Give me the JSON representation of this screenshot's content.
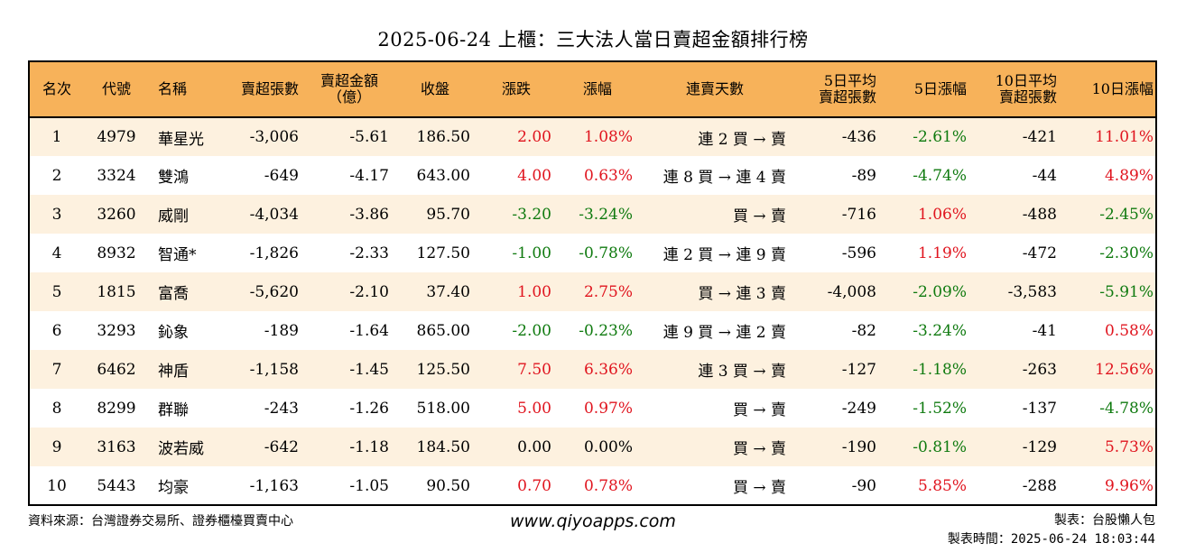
{
  "title": "2025-06-24 上櫃：三大法人當日賣超金額排行榜",
  "columns": [
    {
      "line1": "名次",
      "line2": ""
    },
    {
      "line1": "代號",
      "line2": ""
    },
    {
      "line1": "名稱",
      "line2": ""
    },
    {
      "line1": "賣超張數",
      "line2": ""
    },
    {
      "line1": "賣超金額",
      "line2": "（億）"
    },
    {
      "line1": "收盤",
      "line2": ""
    },
    {
      "line1": "漲跌",
      "line2": ""
    },
    {
      "line1": "漲幅",
      "line2": ""
    },
    {
      "line1": "連賣天數",
      "line2": ""
    },
    {
      "line1": "5日平均",
      "line2": "賣超張數"
    },
    {
      "line1": "5日漲幅",
      "line2": ""
    },
    {
      "line1": "10日平均",
      "line2": "賣超張數"
    },
    {
      "line1": "10日漲幅",
      "line2": ""
    }
  ],
  "rows": [
    {
      "rank": "1",
      "code": "4979",
      "name": "華星光",
      "sell_qty": "-3,006",
      "sell_amt": "-5.61",
      "close": "186.50",
      "change": "2.00",
      "pct": "1.08%",
      "streak": "連 2 買 → 賣",
      "avg5": "-436",
      "chg5": "-2.61%",
      "avg10": "-421",
      "chg10": "11.01%",
      "change_color": "red",
      "pct_color": "red",
      "chg5_color": "green",
      "chg10_color": "red"
    },
    {
      "rank": "2",
      "code": "3324",
      "name": "雙鴻",
      "sell_qty": "-649",
      "sell_amt": "-4.17",
      "close": "643.00",
      "change": "4.00",
      "pct": "0.63%",
      "streak": "連 8 買 → 連 4 賣",
      "avg5": "-89",
      "chg5": "-4.74%",
      "avg10": "-44",
      "chg10": "4.89%",
      "change_color": "red",
      "pct_color": "red",
      "chg5_color": "green",
      "chg10_color": "red"
    },
    {
      "rank": "3",
      "code": "3260",
      "name": "威剛",
      "sell_qty": "-4,034",
      "sell_amt": "-3.86",
      "close": "95.70",
      "change": "-3.20",
      "pct": "-3.24%",
      "streak": "買 → 賣",
      "avg5": "-716",
      "chg5": "1.06%",
      "avg10": "-488",
      "chg10": "-2.45%",
      "change_color": "green",
      "pct_color": "green",
      "chg5_color": "red",
      "chg10_color": "green"
    },
    {
      "rank": "4",
      "code": "8932",
      "name": "智通*",
      "sell_qty": "-1,826",
      "sell_amt": "-2.33",
      "close": "127.50",
      "change": "-1.00",
      "pct": "-0.78%",
      "streak": "連 2 買 → 連 9 賣",
      "avg5": "-596",
      "chg5": "1.19%",
      "avg10": "-472",
      "chg10": "-2.30%",
      "change_color": "green",
      "pct_color": "green",
      "chg5_color": "red",
      "chg10_color": "green"
    },
    {
      "rank": "5",
      "code": "1815",
      "name": "富喬",
      "sell_qty": "-5,620",
      "sell_amt": "-2.10",
      "close": "37.40",
      "change": "1.00",
      "pct": "2.75%",
      "streak": "買 → 連 3 賣",
      "avg5": "-4,008",
      "chg5": "-2.09%",
      "avg10": "-3,583",
      "chg10": "-5.91%",
      "change_color": "red",
      "pct_color": "red",
      "chg5_color": "green",
      "chg10_color": "green"
    },
    {
      "rank": "6",
      "code": "3293",
      "name": "鈊象",
      "sell_qty": "-189",
      "sell_amt": "-1.64",
      "close": "865.00",
      "change": "-2.00",
      "pct": "-0.23%",
      "streak": "連 9 買 → 連 2 賣",
      "avg5": "-82",
      "chg5": "-3.24%",
      "avg10": "-41",
      "chg10": "0.58%",
      "change_color": "green",
      "pct_color": "green",
      "chg5_color": "green",
      "chg10_color": "red"
    },
    {
      "rank": "7",
      "code": "6462",
      "name": "神盾",
      "sell_qty": "-1,158",
      "sell_amt": "-1.45",
      "close": "125.50",
      "change": "7.50",
      "pct": "6.36%",
      "streak": "連 3 買 → 賣",
      "avg5": "-127",
      "chg5": "-1.18%",
      "avg10": "-263",
      "chg10": "12.56%",
      "change_color": "red",
      "pct_color": "red",
      "chg5_color": "green",
      "chg10_color": "red"
    },
    {
      "rank": "8",
      "code": "8299",
      "name": "群聯",
      "sell_qty": "-243",
      "sell_amt": "-1.26",
      "close": "518.00",
      "change": "5.00",
      "pct": "0.97%",
      "streak": "買 → 賣",
      "avg5": "-249",
      "chg5": "-1.52%",
      "avg10": "-137",
      "chg10": "-4.78%",
      "change_color": "red",
      "pct_color": "red",
      "chg5_color": "green",
      "chg10_color": "green"
    },
    {
      "rank": "9",
      "code": "3163",
      "name": "波若威",
      "sell_qty": "-642",
      "sell_amt": "-1.18",
      "close": "184.50",
      "change": "0.00",
      "pct": "0.00%",
      "streak": "買 → 賣",
      "avg5": "-190",
      "chg5": "-0.81%",
      "avg10": "-129",
      "chg10": "5.73%",
      "change_color": "black",
      "pct_color": "black",
      "chg5_color": "green",
      "chg10_color": "red"
    },
    {
      "rank": "10",
      "code": "5443",
      "name": "均豪",
      "sell_qty": "-1,163",
      "sell_amt": "-1.05",
      "close": "90.50",
      "change": "0.70",
      "pct": "0.78%",
      "streak": "買 → 賣",
      "avg5": "-90",
      "chg5": "5.85%",
      "avg10": "-288",
      "chg10": "9.96%",
      "change_color": "red",
      "pct_color": "red",
      "chg5_color": "red",
      "chg10_color": "red"
    }
  ],
  "footer": {
    "source": "資料來源：台灣證券交易所、證券櫃檯買賣中心",
    "website": "www.qiyoapps.com",
    "maker": "製表：台股懶人包",
    "made_time": "製表時間：2025-06-24 18:03:44"
  },
  "colors": {
    "header_bg": "#f7b25a",
    "row_alt_bg": "#fdf1df",
    "up": "#e0141e",
    "down": "#0f7a0f"
  }
}
